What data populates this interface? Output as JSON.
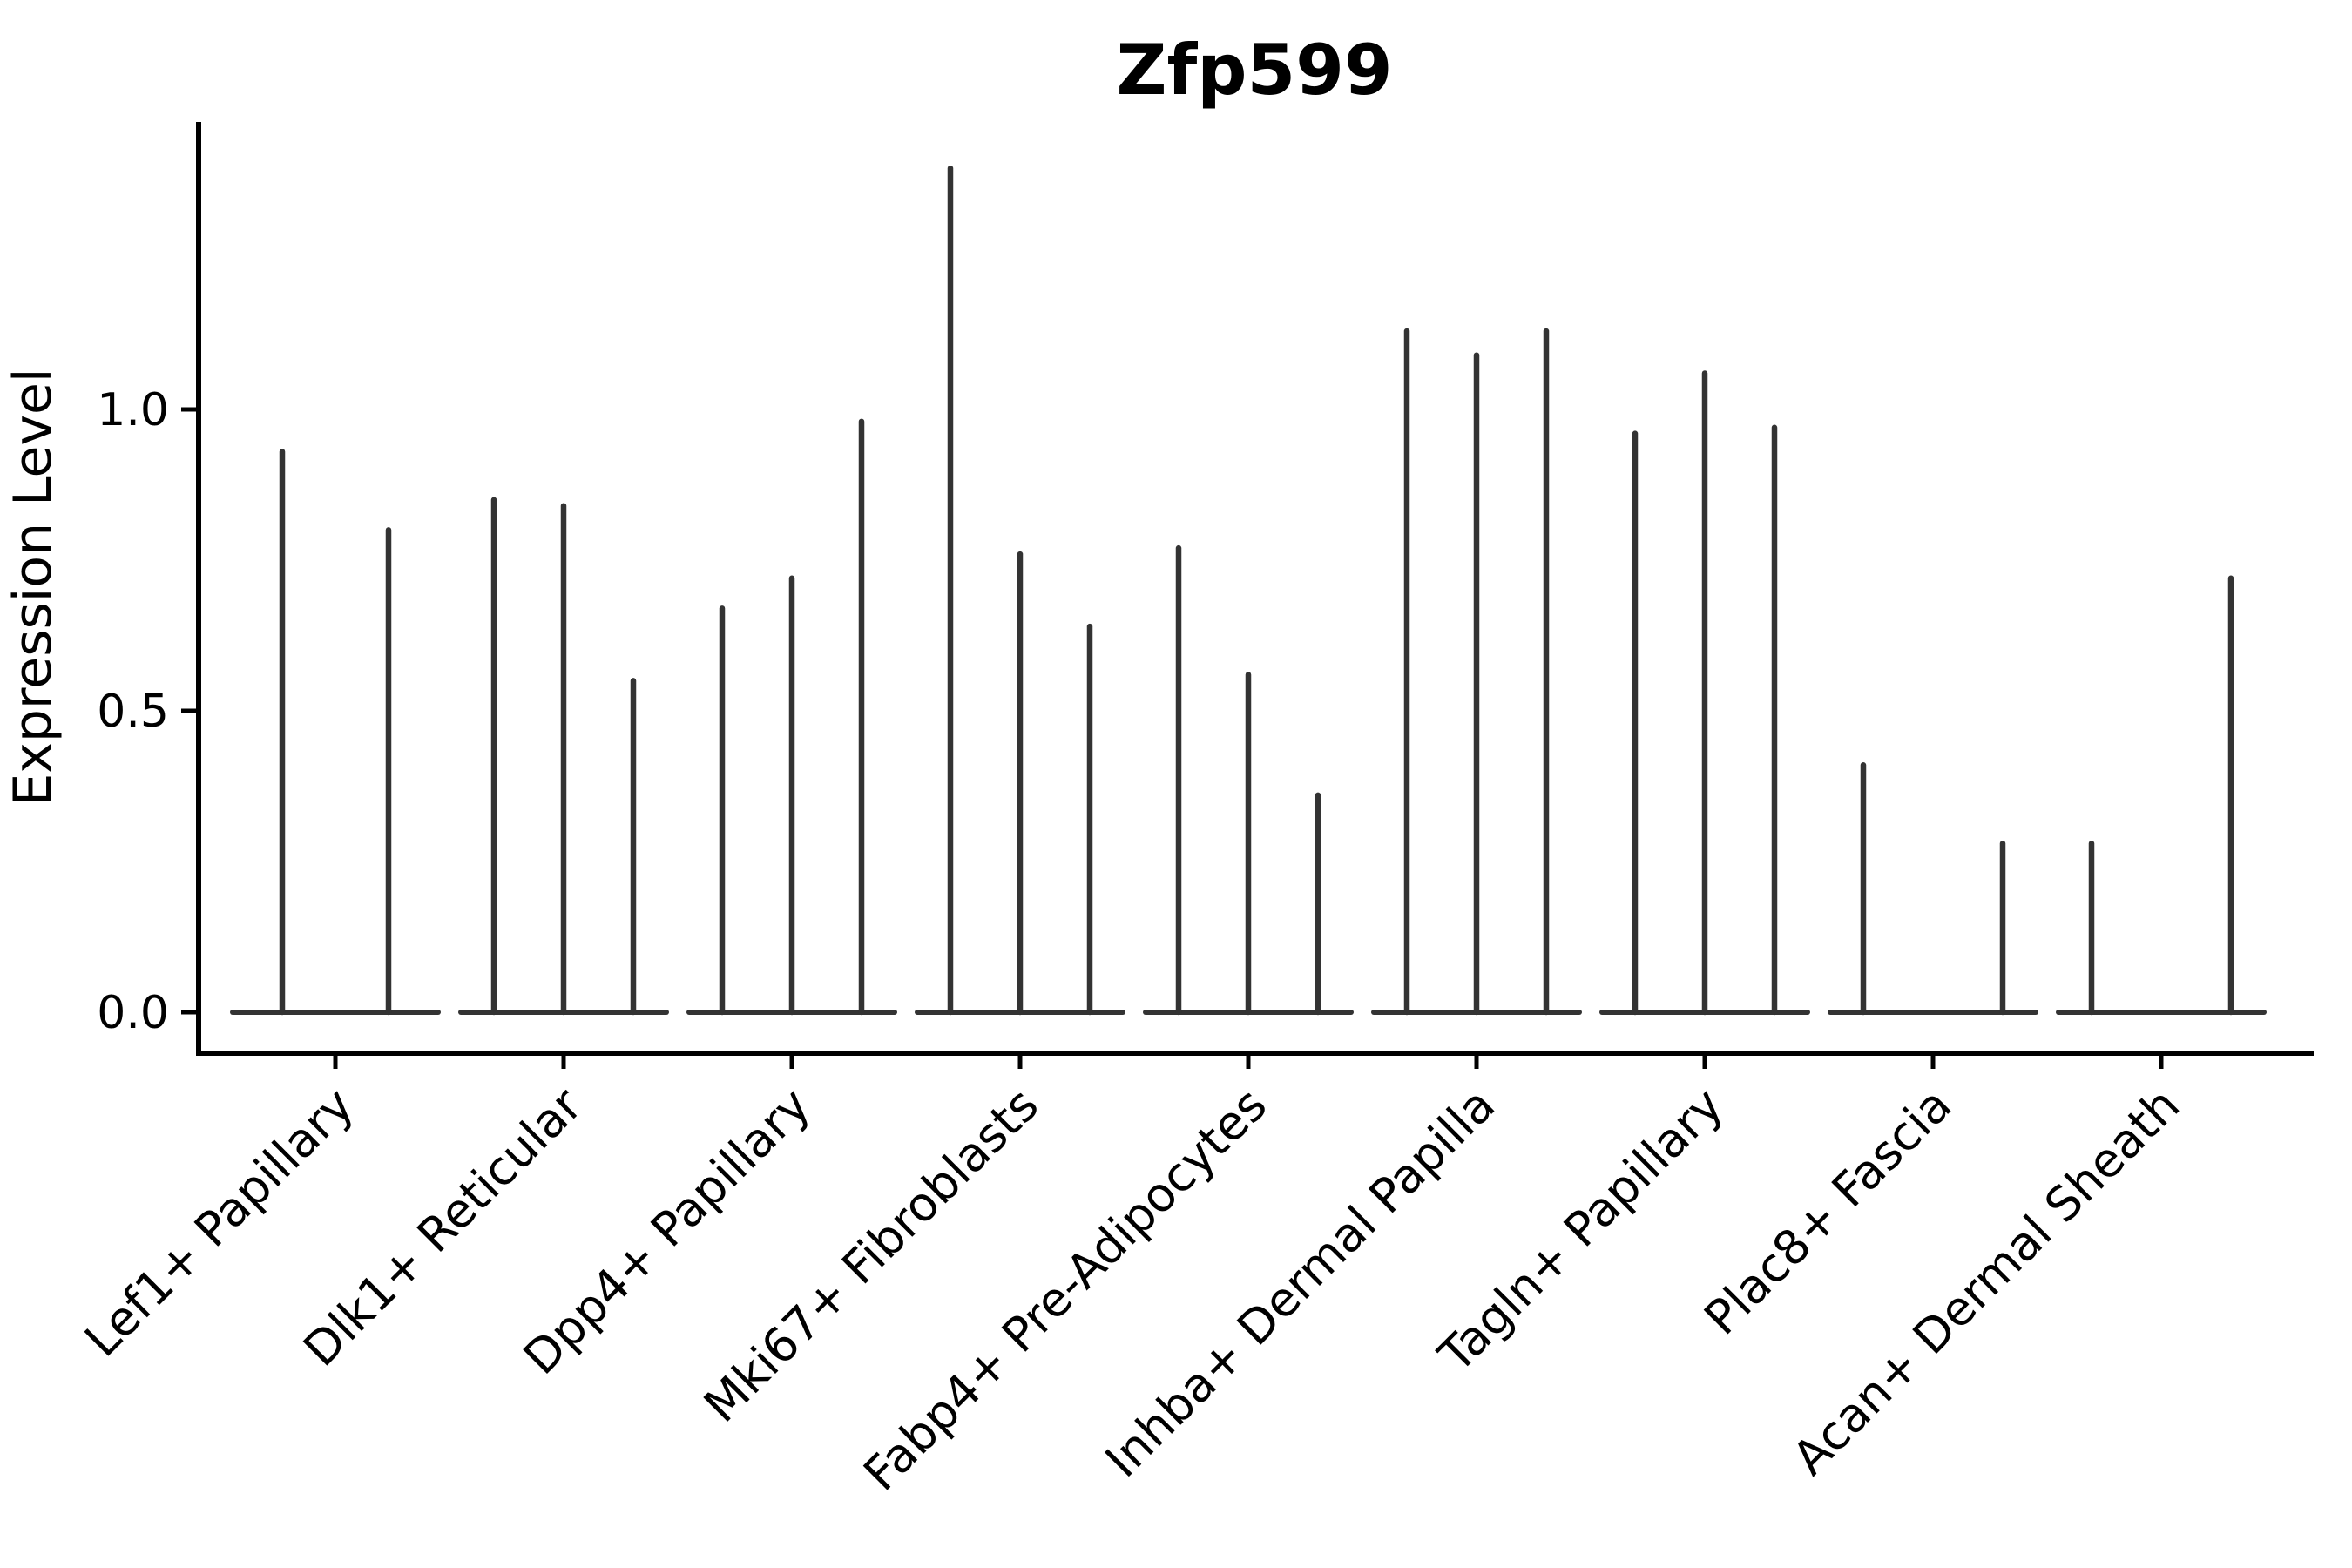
{
  "chart_data": {
    "type": "violin",
    "title": "Zfp599",
    "xlabel": "",
    "ylabel": "Expression Level",
    "ytick_labels": [
      "0.0",
      "0.5",
      "1.0"
    ],
    "ytick_values": [
      0.0,
      0.5,
      1.0
    ],
    "ylim": [
      -0.07,
      1.47
    ],
    "grid": false,
    "legend": "none",
    "violin_color": "#333333",
    "axis_color": "#000000",
    "description": "Sparse single-cell gene expression violin plot: each violin has a wide flat base at 0 (most cells zero) and a thin spike rising to its maximum expression value; zero-valued violins render as flat base only.",
    "categories": [
      {
        "label": "Lef1+ Papillary",
        "violin_max_values": [
          0.93,
          0.8
        ]
      },
      {
        "label": "Dlk1+ Reticular",
        "violin_max_values": [
          0.85,
          0.84,
          0.55
        ]
      },
      {
        "label": "Dpp4+ Papillary",
        "violin_max_values": [
          0.67,
          0.72,
          0.98
        ]
      },
      {
        "label": "Mki67+ Fibroblasts",
        "violin_max_values": [
          1.4,
          0.76,
          0.64
        ]
      },
      {
        "label": "Fabp4+ Pre-Adipocytes",
        "violin_max_values": [
          0.77,
          0.56,
          0.36
        ]
      },
      {
        "label": "Inhba+ Dermal Papilla",
        "violin_max_values": [
          1.13,
          1.09,
          1.13
        ]
      },
      {
        "label": "Tagln+ Papillary",
        "violin_max_values": [
          0.96,
          1.06,
          0.97
        ]
      },
      {
        "label": "Plac8+ Fascia",
        "violin_max_values": [
          0.41,
          0.0,
          0.28
        ]
      },
      {
        "label": "Acan+ Dermal Sheath",
        "violin_max_values": [
          0.28,
          0.0,
          0.72
        ]
      }
    ]
  }
}
